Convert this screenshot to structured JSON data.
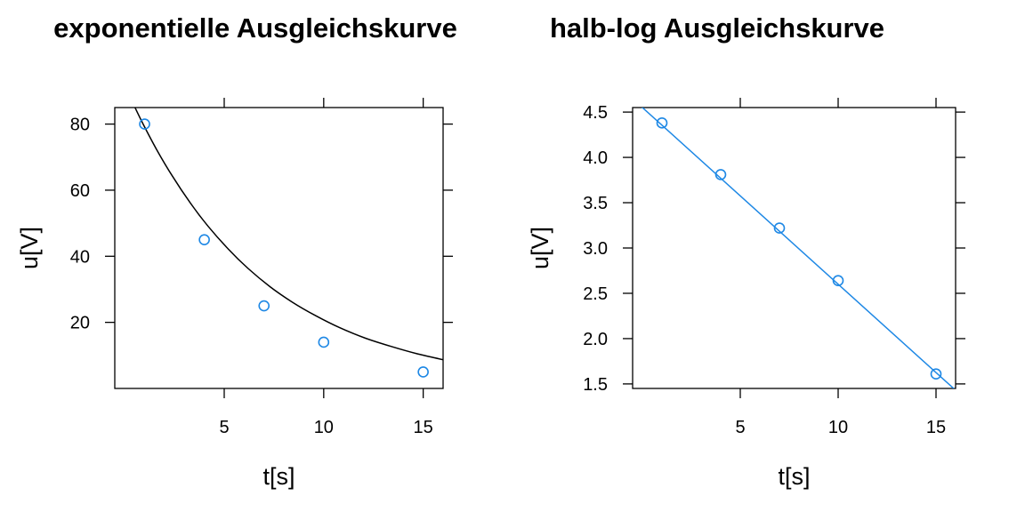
{
  "chart_data": [
    {
      "type": "scatter",
      "title": "exponentielle Ausgleichskurve",
      "xlabel": "t[s]",
      "ylabel": "u[V]",
      "x": [
        1,
        4,
        7,
        10,
        15
      ],
      "y": [
        80,
        45,
        25,
        14,
        5
      ],
      "xlim": [
        -0.5,
        16
      ],
      "ylim": [
        0,
        85
      ],
      "xticks": [
        5,
        10,
        15
      ],
      "yticks": [
        20,
        40,
        60,
        80
      ],
      "xtick_labels": [
        "5",
        "10",
        "15"
      ],
      "ytick_labels": [
        "20",
        "40",
        "60",
        "80"
      ],
      "fit": {
        "type": "exponential",
        "x": [
          0.4,
          0.9,
          1.6,
          2.4,
          3.3,
          4.2,
          5.2,
          6.2,
          7.3,
          8.4,
          9.6,
          10.8,
          12.1,
          13.4,
          14.7,
          16.0
        ],
        "y": [
          86.5,
          80.3,
          72.3,
          64.2,
          56.1,
          49.0,
          42.2,
          36.3,
          30.8,
          26.2,
          22.0,
          18.4,
          15.2,
          12.7,
          10.5,
          8.7
        ]
      },
      "colors": {
        "points": "#1e88e5",
        "fit": "#000000"
      },
      "grid": false,
      "legend": "none"
    },
    {
      "type": "scatter",
      "title": "halb-log Ausgleichskurve",
      "xlabel": "t[s]",
      "ylabel": "u[V]",
      "x": [
        1,
        4,
        7,
        10,
        15
      ],
      "y": [
        4.38,
        3.81,
        3.22,
        2.64,
        1.61
      ],
      "xlim": [
        -0.5,
        16
      ],
      "ylim": [
        1.45,
        4.55
      ],
      "xticks": [
        5,
        10,
        15
      ],
      "yticks": [
        1.5,
        2.0,
        2.5,
        3.0,
        3.5,
        4.0,
        4.5
      ],
      "xtick_labels": [
        "5",
        "10",
        "15"
      ],
      "ytick_labels": [
        "1.5",
        "2.0",
        "2.5",
        "3.0",
        "3.5",
        "4.0",
        "4.5"
      ],
      "fit": {
        "type": "linear",
        "x": [
          -0.05,
          16.0
        ],
        "y": [
          4.56,
          1.43
        ]
      },
      "colors": {
        "points": "#1e88e5",
        "fit": "#1e88e5"
      },
      "grid": false,
      "legend": "none"
    }
  ]
}
